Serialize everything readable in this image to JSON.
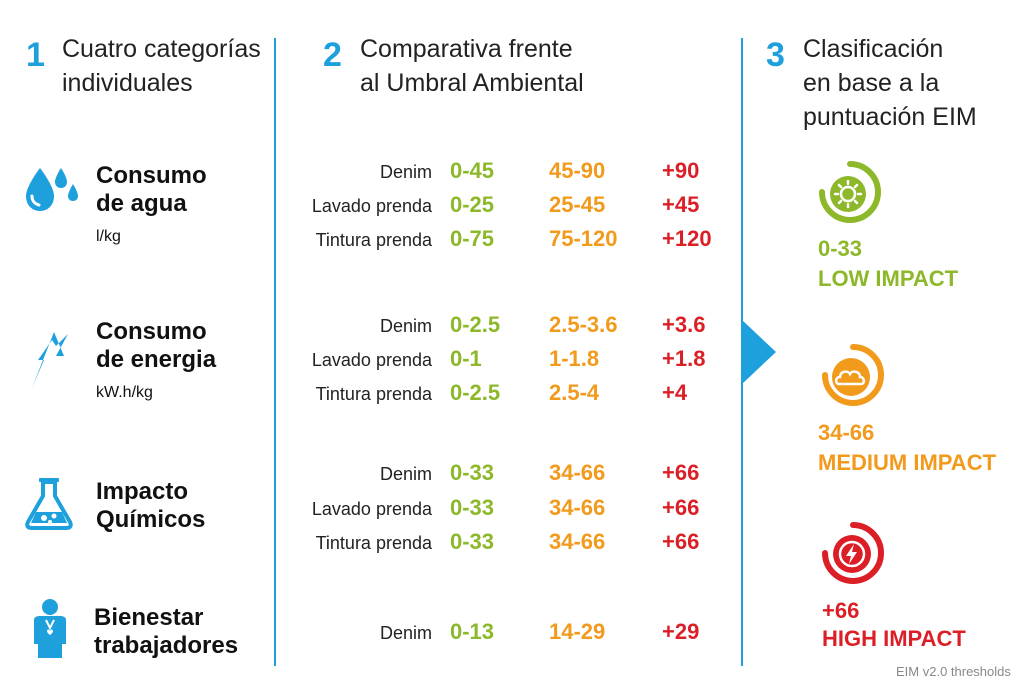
{
  "steps": [
    {
      "number": "1",
      "heading": [
        "Cuatro categorías",
        "individuales"
      ]
    },
    {
      "number": "2",
      "heading": [
        "Comparativa frente",
        "al Umbral Ambiental"
      ]
    },
    {
      "number": "3",
      "heading": [
        "Clasificación",
        "en base a la",
        "puntuación EIM"
      ]
    }
  ],
  "categories": [
    {
      "title": [
        "Consumo",
        "de agua"
      ],
      "unit": "l/kg",
      "icon": "water-drops-icon",
      "rows": [
        {
          "label": "Denim",
          "low": "0-45",
          "medium": "45-90",
          "high": "+90"
        },
        {
          "label": "Lavado prenda",
          "low": "0-25",
          "medium": "25-45",
          "high": "+45"
        },
        {
          "label": "Tintura prenda",
          "low": "0-75",
          "medium": "75-120",
          "high": "+120"
        }
      ]
    },
    {
      "title": [
        "Consumo",
        "de energia"
      ],
      "unit": "kW.h/kg",
      "icon": "lightning-icon",
      "rows": [
        {
          "label": "Denim",
          "low": "0-2.5",
          "medium": "2.5-3.6",
          "high": "+3.6"
        },
        {
          "label": "Lavado prenda",
          "low": "0-1",
          "medium": "1-1.8",
          "high": "+1.8"
        },
        {
          "label": "Tintura prenda",
          "low": "0-2.5",
          "medium": "2.5-4",
          "high": "+4"
        }
      ]
    },
    {
      "title": [
        "Impacto",
        "Químicos"
      ],
      "unit": "",
      "icon": "flask-icon",
      "rows": [
        {
          "label": "Denim",
          "low": "0-33",
          "medium": "34-66",
          "high": "+66"
        },
        {
          "label": "Lavado prenda",
          "low": "0-33",
          "medium": "34-66",
          "high": "+66"
        },
        {
          "label": "Tintura prenda",
          "low": "0-33",
          "medium": "34-66",
          "high": "+66"
        }
      ]
    },
    {
      "title": [
        "Bienestar",
        "trabajadores"
      ],
      "unit": "",
      "icon": "worker-icon",
      "rows": [
        {
          "label": "Denim",
          "low": "0-13",
          "medium": "14-29",
          "high": "+29"
        }
      ]
    }
  ],
  "impacts": [
    {
      "range": "0-33",
      "name": "LOW IMPACT",
      "color": "#8cb82a",
      "icon": "sun-icon"
    },
    {
      "range": "34-66",
      "name": "MEDIUM IMPACT",
      "color": "#f29a1c",
      "icon": "cloud-icon"
    },
    {
      "range": "+66",
      "name": "HIGH IMPACT",
      "color": "#dc1f26",
      "icon": "lightning-alert-icon"
    }
  ],
  "colors": {
    "accent": "#1ea0dc",
    "low": "#8cb82a",
    "medium": "#f29a1c",
    "high": "#dc1f26"
  },
  "footer": "EIM v2.0 thresholds"
}
